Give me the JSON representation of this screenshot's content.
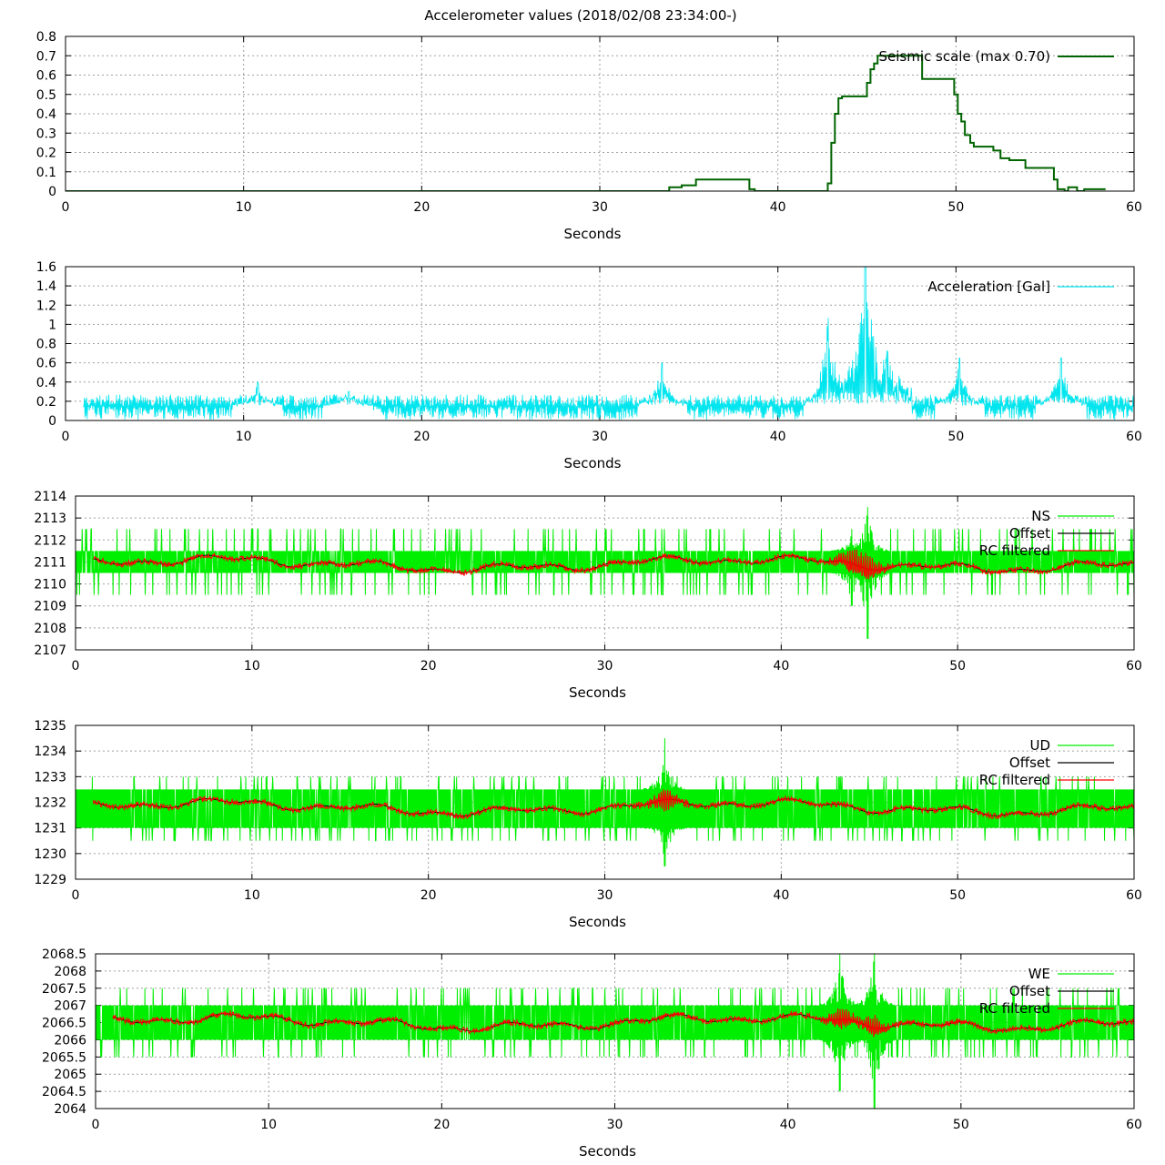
{
  "title": "Accelerometer values (2018/02/08 23:34:00-)",
  "colors": {
    "seismic": "#006400",
    "acceleration": "#00e5ee",
    "raw": "#00ee00",
    "offset": "#000000",
    "filtered": "#ff0000"
  },
  "chart_data": [
    {
      "type": "line",
      "xlabel": "Seconds",
      "xlim": [
        0,
        60
      ],
      "ylim": [
        0,
        0.8
      ],
      "xticks": [
        "0",
        "10",
        "20",
        "30",
        "40",
        "50",
        "60"
      ],
      "yticks": [
        "0",
        "0.1",
        "0.2",
        "0.3",
        "0.4",
        "0.5",
        "0.6",
        "0.7",
        "0.8"
      ],
      "legend_position": "top-right",
      "grid": true,
      "series": [
        {
          "name": "Seismic scale (max 0.70)",
          "color": "seismic",
          "style": "step",
          "points": [
            [
              0,
              0
            ],
            [
              33.7,
              0
            ],
            [
              33.9,
              0.02
            ],
            [
              34.6,
              0.03
            ],
            [
              35.4,
              0.06
            ],
            [
              38.1,
              0.06
            ],
            [
              38.4,
              0.01
            ],
            [
              38.7,
              0
            ],
            [
              42.6,
              0
            ],
            [
              42.8,
              0.04
            ],
            [
              43.0,
              0.25
            ],
            [
              43.2,
              0.4
            ],
            [
              43.4,
              0.48
            ],
            [
              43.6,
              0.49
            ],
            [
              44.9,
              0.49
            ],
            [
              45.0,
              0.56
            ],
            [
              45.2,
              0.63
            ],
            [
              45.4,
              0.66
            ],
            [
              45.6,
              0.7
            ],
            [
              48.0,
              0.7
            ],
            [
              48.1,
              0.58
            ],
            [
              49.8,
              0.58
            ],
            [
              49.9,
              0.5
            ],
            [
              50.1,
              0.4
            ],
            [
              50.3,
              0.36
            ],
            [
              50.5,
              0.29
            ],
            [
              50.8,
              0.25
            ],
            [
              51.0,
              0.23
            ],
            [
              52.1,
              0.21
            ],
            [
              52.5,
              0.17
            ],
            [
              53.0,
              0.16
            ],
            [
              53.9,
              0.12
            ],
            [
              55.3,
              0.12
            ],
            [
              55.5,
              0.06
            ],
            [
              55.7,
              0.01
            ],
            [
              56.1,
              0
            ],
            [
              56.3,
              0.02
            ],
            [
              56.7,
              0.02
            ],
            [
              56.8,
              0
            ],
            [
              57.2,
              0.01
            ],
            [
              58.4,
              0.01
            ]
          ]
        }
      ]
    },
    {
      "type": "line",
      "xlabel": "Seconds",
      "xlim": [
        0,
        60
      ],
      "ylim": [
        0,
        1.6
      ],
      "xticks": [
        "0",
        "10",
        "20",
        "30",
        "40",
        "50",
        "60"
      ],
      "yticks": [
        "0",
        "0.2",
        "0.4",
        "0.6",
        "0.8",
        "1",
        "1.2",
        "1.4",
        "1.6"
      ],
      "legend_position": "top-right",
      "grid": true,
      "series": [
        {
          "name": "Acceleration [Gal]",
          "color": "acceleration",
          "style": "noise",
          "start": 1.0,
          "base": 0.15,
          "amp": 0.11,
          "events": [
            [
              10.8,
              0.4
            ],
            [
              15.9,
              0.3
            ],
            [
              33.5,
              0.6
            ],
            [
              42.8,
              0.82
            ],
            [
              44.9,
              1.6
            ],
            [
              46.1,
              0.6
            ],
            [
              50.2,
              0.65
            ],
            [
              55.9,
              0.65
            ]
          ]
        }
      ]
    },
    {
      "type": "line",
      "xlabel": "Seconds",
      "xlim": [
        0,
        60
      ],
      "ylim": [
        2107,
        2114
      ],
      "xticks": [
        "0",
        "10",
        "20",
        "30",
        "40",
        "50",
        "60"
      ],
      "yticks": [
        "2107",
        "2108",
        "2109",
        "2110",
        "2111",
        "2112",
        "2113",
        "2114"
      ],
      "legend_position": "top-right",
      "grid": true,
      "series": [
        {
          "name": "NS",
          "color": "raw",
          "style": "raw",
          "base": 2110.9,
          "band": [
            2110.5,
            2111.5
          ],
          "spikes": [
            2109.5,
            2112.5
          ],
          "events": [
            [
              44.9,
              2107.5,
              2113.5
            ],
            [
              44.0,
              2109.0,
              2112.5
            ]
          ]
        },
        {
          "name": "Offset",
          "color": "offset",
          "style": "smooth",
          "base": 2110.9,
          "start": 1.0
        },
        {
          "name": "RC filtered",
          "color": "filtered",
          "style": "filtered",
          "base": 2110.9,
          "start": 1.0
        }
      ]
    },
    {
      "type": "line",
      "xlabel": "Seconds",
      "xlim": [
        0,
        60
      ],
      "ylim": [
        1229,
        1235
      ],
      "xticks": [
        "0",
        "10",
        "20",
        "30",
        "40",
        "50",
        "60"
      ],
      "yticks": [
        "1229",
        "1230",
        "1231",
        "1232",
        "1233",
        "1234",
        "1235"
      ],
      "legend_position": "top-right",
      "grid": true,
      "series": [
        {
          "name": "UD",
          "color": "raw",
          "style": "raw",
          "base": 1231.8,
          "band": [
            1231.0,
            1232.5
          ],
          "spikes": [
            1230.5,
            1233.0
          ],
          "events": [
            [
              33.4,
              1229.5,
              1234.5
            ]
          ]
        },
        {
          "name": "Offset",
          "color": "offset",
          "style": "smooth",
          "base": 1231.8,
          "start": 1.0
        },
        {
          "name": "RC filtered",
          "color": "filtered",
          "style": "filtered",
          "base": 1231.8,
          "start": 1.0
        }
      ]
    },
    {
      "type": "line",
      "xlabel": "Seconds",
      "xlim": [
        0,
        60
      ],
      "ylim": [
        2064,
        2068.5
      ],
      "xticks": [
        "0",
        "10",
        "20",
        "30",
        "40",
        "50",
        "60"
      ],
      "yticks": [
        "2064",
        "2064.5",
        "2065",
        "2065.5",
        "2066",
        "2066.5",
        "2067",
        "2067.5",
        "2068",
        "2068.5"
      ],
      "legend_position": "top-right",
      "grid": true,
      "series": [
        {
          "name": "WE",
          "color": "raw",
          "style": "raw",
          "base": 2066.5,
          "band": [
            2066.0,
            2067.0
          ],
          "spikes": [
            2065.5,
            2067.5
          ],
          "events": [
            [
              43.0,
              2064.5,
              2068.5
            ],
            [
              45.0,
              2064.0,
              2068.5
            ]
          ]
        },
        {
          "name": "Offset",
          "color": "offset",
          "style": "smooth",
          "base": 2066.5,
          "start": 1.0
        },
        {
          "name": "RC filtered",
          "color": "filtered",
          "style": "filtered",
          "base": 2066.5,
          "start": 1.0
        }
      ]
    }
  ]
}
